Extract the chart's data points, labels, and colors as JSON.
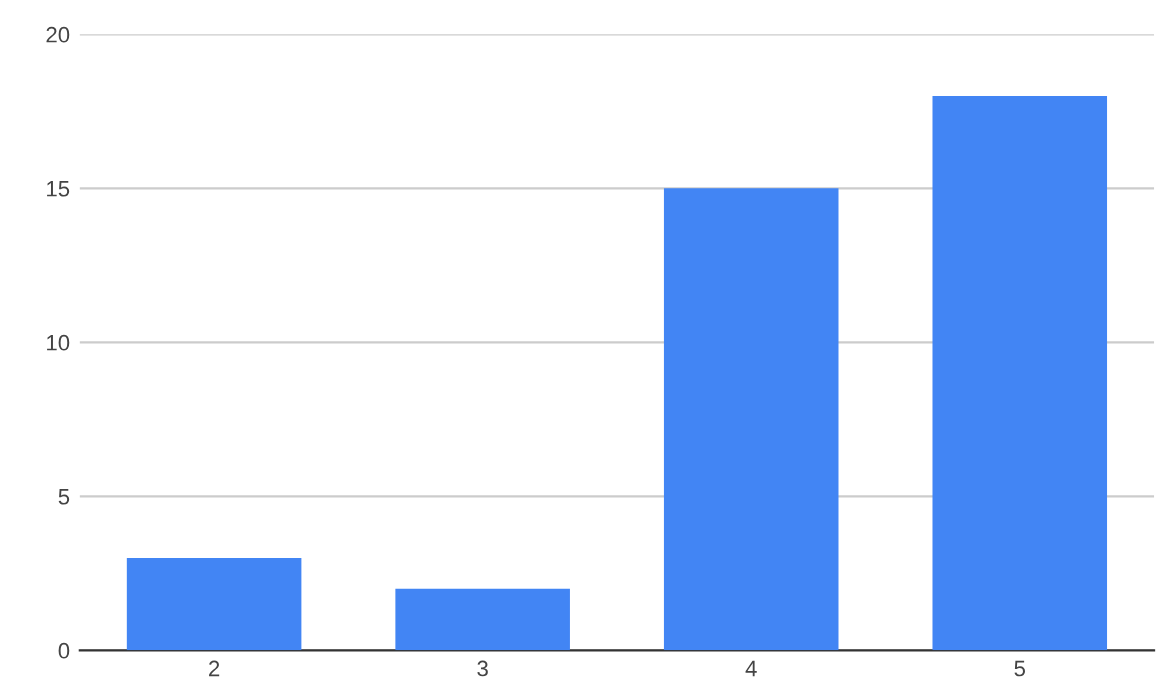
{
  "chart_data": {
    "type": "bar",
    "categories": [
      "2",
      "3",
      "4",
      "5"
    ],
    "values": [
      3,
      2,
      15,
      18
    ],
    "color": "#4285f4",
    "ylim": [
      0,
      20
    ],
    "yticks": [
      0,
      5,
      10,
      15,
      20
    ],
    "grid": "y",
    "legend": false
  }
}
